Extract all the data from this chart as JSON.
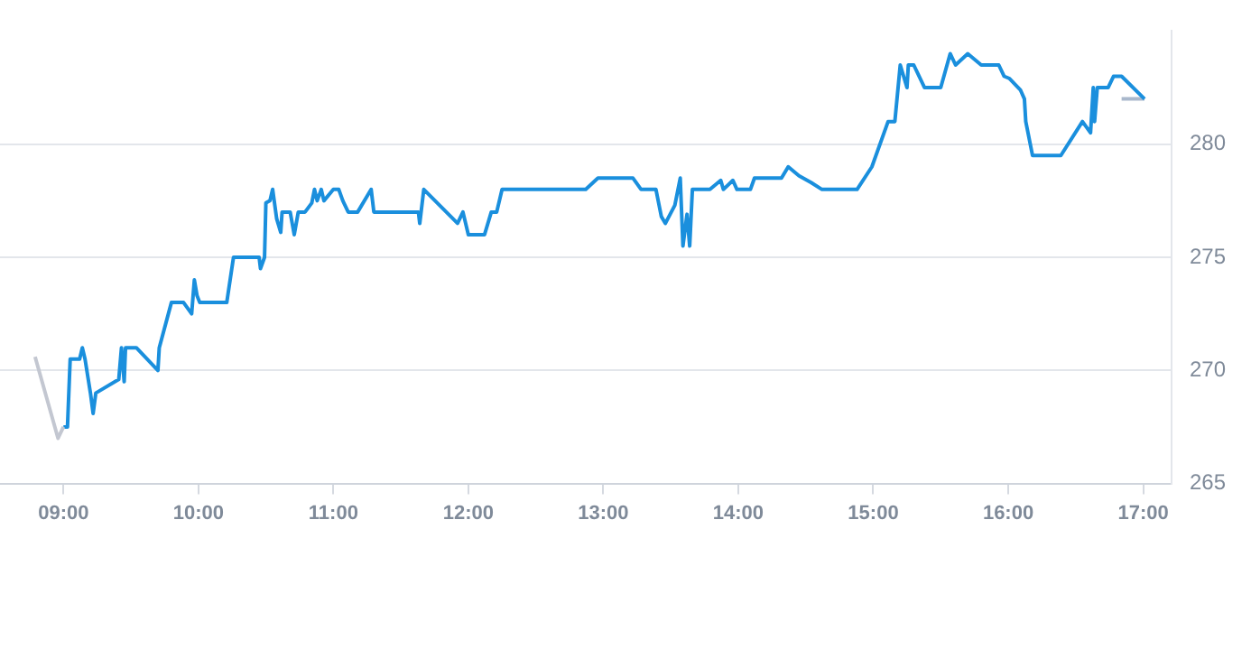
{
  "chart_data": {
    "type": "line",
    "xlim": [
      8.53,
      17.21
    ],
    "ylim": [
      265,
      285
    ],
    "xticks": [
      {
        "value": 9,
        "label": "09:00"
      },
      {
        "value": 10,
        "label": "10:00"
      },
      {
        "value": 11,
        "label": "11:00"
      },
      {
        "value": 12,
        "label": "12:00"
      },
      {
        "value": 13,
        "label": "13:00"
      },
      {
        "value": 14,
        "label": "14:00"
      },
      {
        "value": 15,
        "label": "15:00"
      },
      {
        "value": 16,
        "label": "16:00"
      },
      {
        "value": 17,
        "label": "17:00"
      }
    ],
    "yticks": [
      265,
      270,
      275,
      280
    ],
    "grid": "y",
    "legend": false,
    "marker": "none",
    "line_style": "solid",
    "series": [
      {
        "color": "#c3c7d1",
        "x": [
          8.79,
          8.96,
          9.0
        ],
        "values": [
          270.6,
          267.0,
          267.5
        ]
      },
      {
        "color": "#1a8fdd",
        "x": [
          9.0,
          9.03,
          9.05,
          9.12,
          9.14,
          9.16,
          9.2,
          9.22,
          9.24,
          9.41,
          9.43,
          9.45,
          9.46,
          9.54,
          9.7,
          9.71,
          9.8,
          9.89,
          9.95,
          9.97,
          9.99,
          10.01,
          10.21,
          10.26,
          10.45,
          10.46,
          10.49,
          10.5,
          10.53,
          10.55,
          10.58,
          10.61,
          10.62,
          10.68,
          10.71,
          10.74,
          10.79,
          10.84,
          10.86,
          10.88,
          10.91,
          10.93,
          11.0,
          11.04,
          11.07,
          11.11,
          11.18,
          11.28,
          11.3,
          11.63,
          11.64,
          11.67,
          11.92,
          11.96,
          12.0,
          12.12,
          12.17,
          12.21,
          12.25,
          12.87,
          12.96,
          13.22,
          13.28,
          13.39,
          13.43,
          13.46,
          13.53,
          13.57,
          13.59,
          13.62,
          13.64,
          13.66,
          13.79,
          13.87,
          13.89,
          13.96,
          13.99,
          14.09,
          14.12,
          14.32,
          14.37,
          14.45,
          14.54,
          14.62,
          14.88,
          14.99,
          15.11,
          15.16,
          15.2,
          15.25,
          15.26,
          15.3,
          15.38,
          15.5,
          15.57,
          15.61,
          15.7,
          15.8,
          15.93,
          15.97,
          16.01,
          16.09,
          16.12,
          16.13,
          16.18,
          16.39,
          16.55,
          16.61,
          16.63,
          16.64,
          16.66,
          16.74,
          16.78,
          16.84,
          17.01
        ],
        "values": [
          267.5,
          267.5,
          270.5,
          270.5,
          271.0,
          270.5,
          269.0,
          268.1,
          269.0,
          269.6,
          271.0,
          269.5,
          271.0,
          271.0,
          270.0,
          271.0,
          273.0,
          273.0,
          272.5,
          274.0,
          273.3,
          273.0,
          273.0,
          275.0,
          275.0,
          274.5,
          275.0,
          277.4,
          277.5,
          278.0,
          276.7,
          276.1,
          277.0,
          277.0,
          276.0,
          277.0,
          277.0,
          277.4,
          278.0,
          277.5,
          278.0,
          277.5,
          278.0,
          278.0,
          277.5,
          277.0,
          277.0,
          278.0,
          277.0,
          277.0,
          276.5,
          278.0,
          276.5,
          277.0,
          276.0,
          276.0,
          277.0,
          277.0,
          278.0,
          278.0,
          278.5,
          278.5,
          278.0,
          278.0,
          276.8,
          276.5,
          277.3,
          278.5,
          275.5,
          276.9,
          275.5,
          278.0,
          278.0,
          278.4,
          278.0,
          278.4,
          278.0,
          278.0,
          278.5,
          278.5,
          279.0,
          278.6,
          278.3,
          278.0,
          278.0,
          279.0,
          281.0,
          281.0,
          283.5,
          282.5,
          283.5,
          283.5,
          282.5,
          282.5,
          284.0,
          283.5,
          284.0,
          283.5,
          283.5,
          283.0,
          282.9,
          282.4,
          282.0,
          281.0,
          279.5,
          279.5,
          281.0,
          280.5,
          282.5,
          281.0,
          282.5,
          282.5,
          283.0,
          283.0,
          282.0
        ]
      },
      {
        "color": "#a9b8cc",
        "x": [
          16.84,
          17.01
        ],
        "values": [
          282.0,
          282.0
        ]
      }
    ]
  }
}
